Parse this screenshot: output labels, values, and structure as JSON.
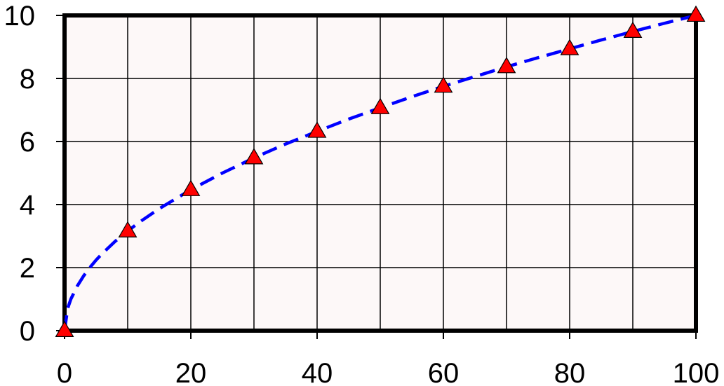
{
  "chart_data": {
    "type": "line",
    "title": "",
    "xlabel": "",
    "ylabel": "",
    "xlim": [
      0,
      100
    ],
    "ylim": [
      0,
      10
    ],
    "x_ticks": [
      0,
      20,
      40,
      60,
      80,
      100
    ],
    "y_ticks": [
      0,
      2,
      4,
      6,
      8,
      10
    ],
    "x_tick_labels": [
      "0",
      "20",
      "40",
      "60",
      "80",
      "100"
    ],
    "y_tick_labels": [
      "0",
      "2",
      "4",
      "6",
      "8",
      "10"
    ],
    "grid": true,
    "grid_x": [
      10,
      20,
      30,
      40,
      50,
      60,
      70,
      80,
      90
    ],
    "grid_y": [
      2,
      4,
      6,
      8
    ],
    "plot_background": "#fdf8f8",
    "legend": "none",
    "series": [
      {
        "kind": "line",
        "style": "dashed",
        "color": "#0000ff",
        "x": [
          0,
          0.5,
          1,
          2,
          3,
          4,
          5,
          6,
          8,
          10,
          12,
          15,
          20,
          25,
          30,
          35,
          40,
          45,
          50,
          55,
          60,
          65,
          70,
          75,
          80,
          85,
          90,
          95,
          100
        ],
        "y": [
          0,
          0.71,
          1.0,
          1.41,
          1.73,
          2.0,
          2.24,
          2.45,
          2.83,
          3.16,
          3.46,
          3.87,
          4.47,
          5.0,
          5.48,
          5.92,
          6.32,
          6.71,
          7.07,
          7.42,
          7.75,
          8.06,
          8.37,
          8.66,
          8.94,
          9.22,
          9.49,
          9.75,
          10.0
        ]
      },
      {
        "kind": "scatter",
        "marker": "triangle",
        "color": "#ff0000",
        "x": [
          0,
          10,
          20,
          30,
          40,
          50,
          60,
          70,
          80,
          90,
          100
        ],
        "y": [
          0,
          3.16,
          4.47,
          5.48,
          6.32,
          7.07,
          7.75,
          8.37,
          8.94,
          9.49,
          10.0
        ]
      }
    ]
  }
}
